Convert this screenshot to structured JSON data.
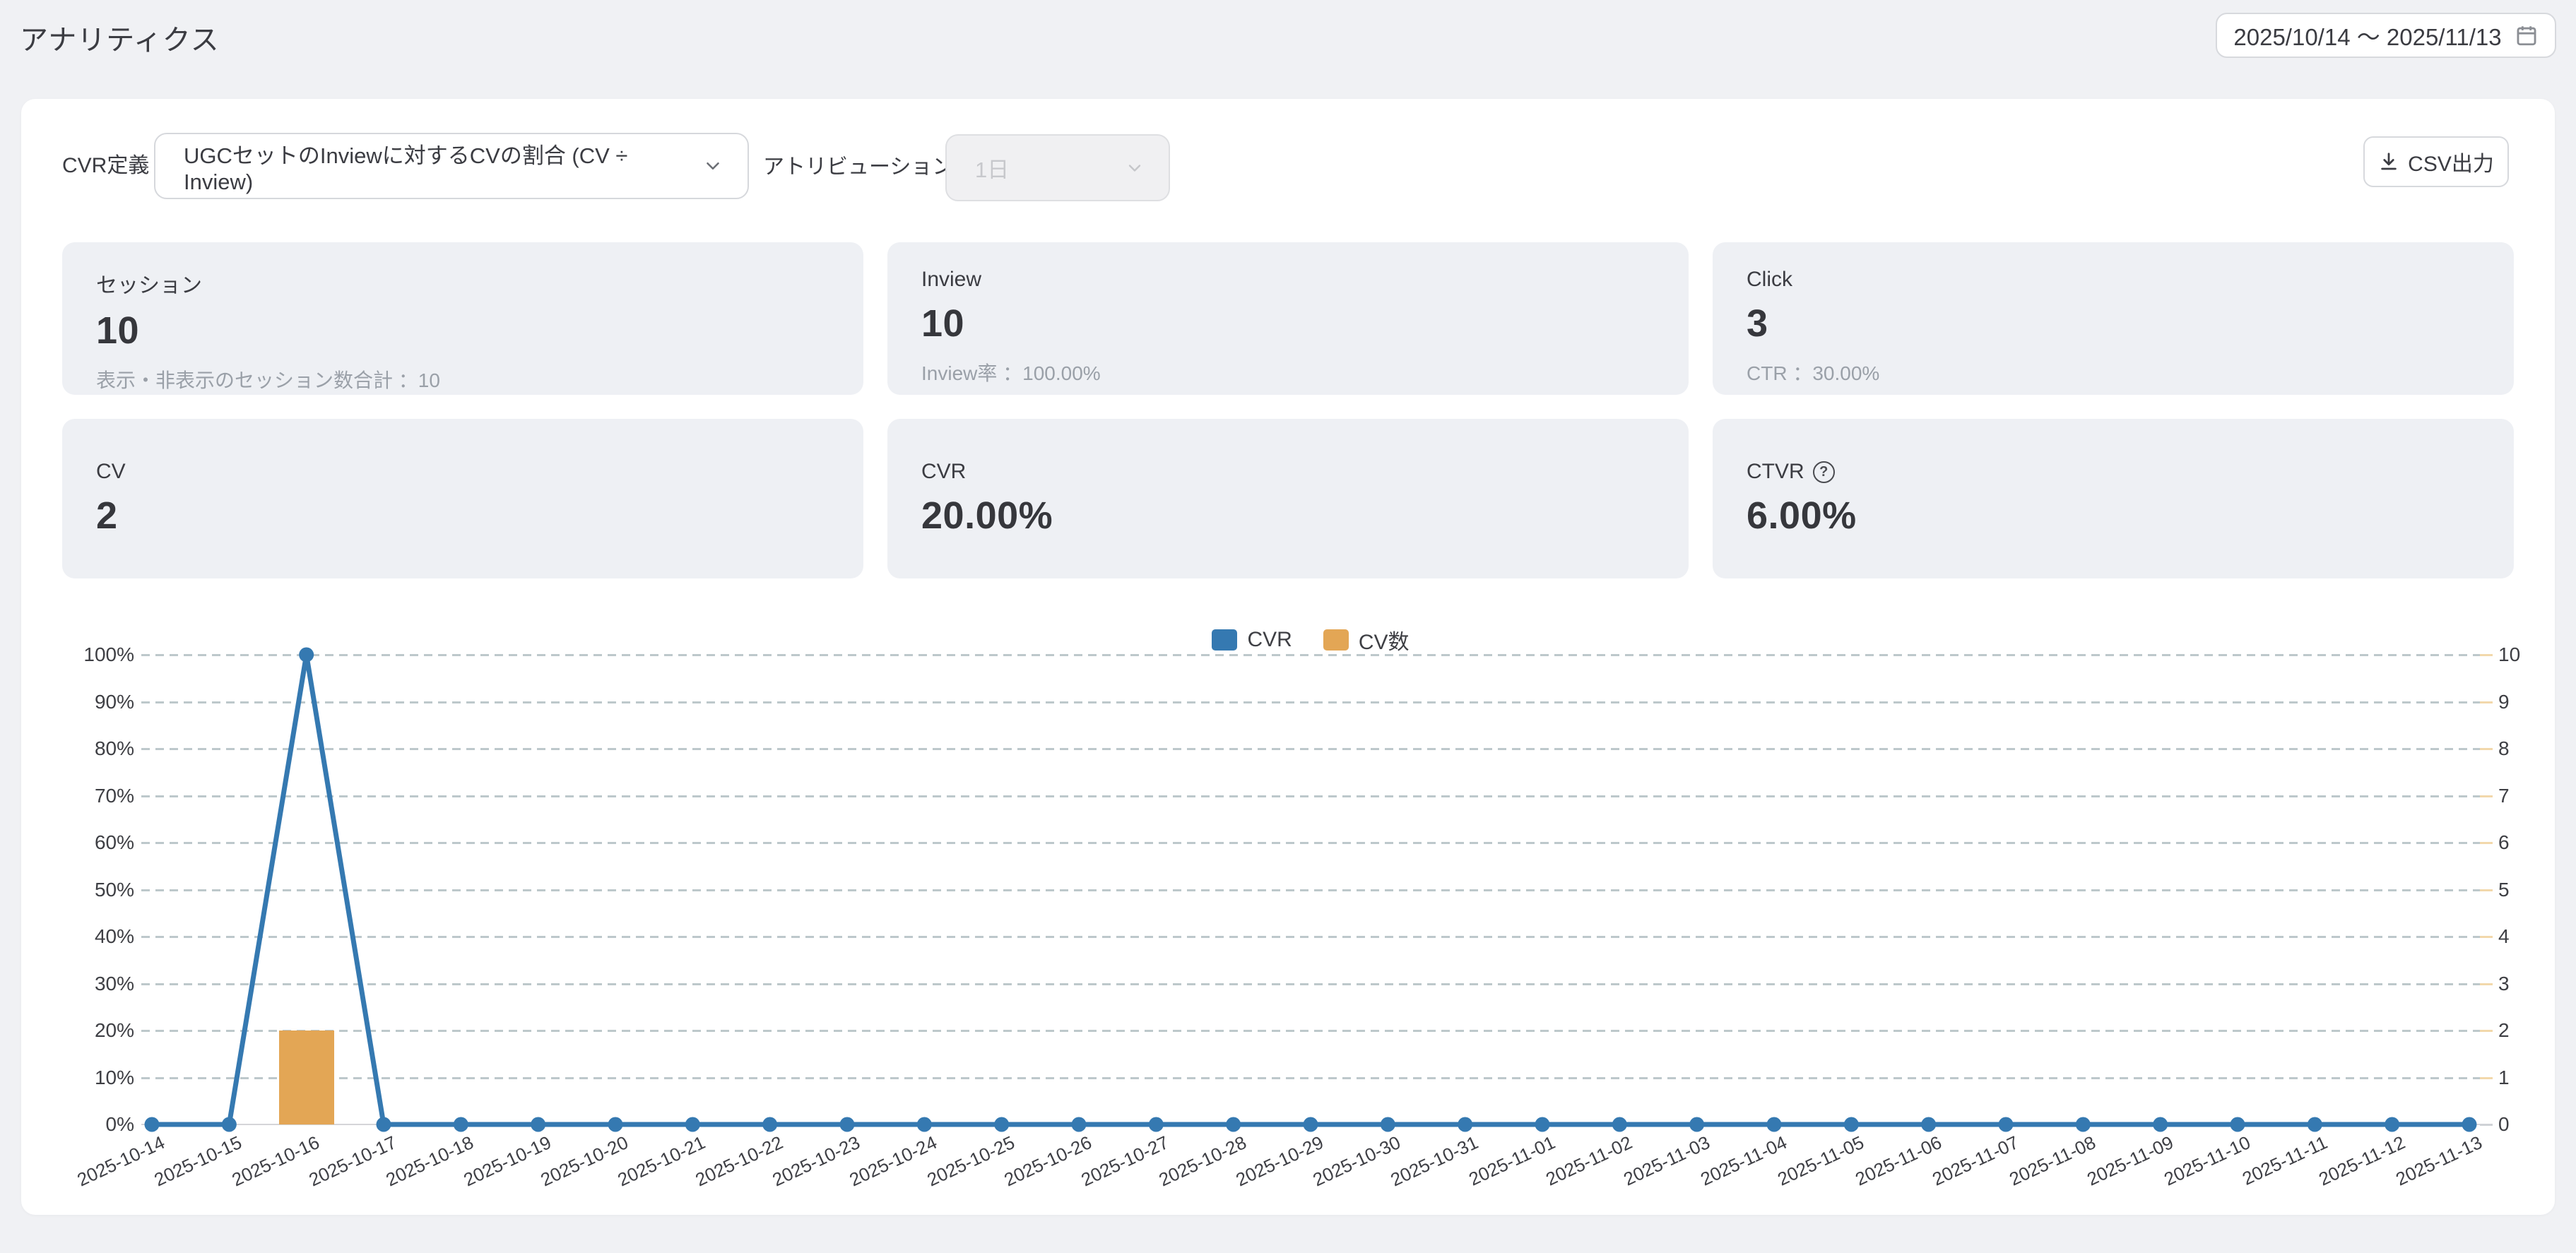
{
  "header": {
    "title": "アナリティクス",
    "date_range": "2025/10/14 ～ 2025/11/13"
  },
  "controls": {
    "cvr_definition_label": "CVR定義",
    "cvr_definition_value": "UGCセットのInviewに対するCVの割合 (CV ÷ Inview)",
    "attribution_label": "アトリビューション",
    "attribution_value": "1日",
    "csv_button_label": "CSV出力"
  },
  "stats": [
    {
      "label": "セッション",
      "value": "10",
      "sub": "表示・非表示のセッション数合計 ：10"
    },
    {
      "label": "Inview",
      "value": "10",
      "sub": "Inview率 ：100.00%"
    },
    {
      "label": "Click",
      "value": "3",
      "sub": "CTR ：30.00%"
    },
    {
      "label": "CV",
      "value": "2",
      "sub": ""
    },
    {
      "label": "CVR",
      "value": "20.00%",
      "sub": ""
    },
    {
      "label": "CTVR",
      "value": "6.00%",
      "sub": "",
      "help_icon": "?"
    }
  ],
  "colors": {
    "cvr_line": "#3579b1",
    "cv_bar": "#e3a655",
    "grid_dash": "#bdc8cb",
    "axis_zero": "#d5d5d8"
  },
  "chart_data": {
    "type": "line+bar",
    "title": "",
    "legend": [
      "CVR",
      "CV数"
    ],
    "legend_position": "top-center",
    "grid": "dashed-horizontal",
    "x": [
      "2025-10-14",
      "2025-10-15",
      "2025-10-16",
      "2025-10-17",
      "2025-10-18",
      "2025-10-19",
      "2025-10-20",
      "2025-10-21",
      "2025-10-22",
      "2025-10-23",
      "2025-10-24",
      "2025-10-25",
      "2025-10-26",
      "2025-10-27",
      "2025-10-28",
      "2025-10-29",
      "2025-10-30",
      "2025-10-31",
      "2025-11-01",
      "2025-11-02",
      "2025-11-03",
      "2025-11-04",
      "2025-11-05",
      "2025-11-06",
      "2025-11-07",
      "2025-11-08",
      "2025-11-09",
      "2025-11-10",
      "2025-11-11",
      "2025-11-12",
      "2025-11-13"
    ],
    "series": [
      {
        "name": "CVR",
        "type": "line",
        "axis": "left",
        "unit": "%",
        "color": "#3579b1",
        "values": [
          0,
          0,
          100,
          0,
          0,
          0,
          0,
          0,
          0,
          0,
          0,
          0,
          0,
          0,
          0,
          0,
          0,
          0,
          0,
          0,
          0,
          0,
          0,
          0,
          0,
          0,
          0,
          0,
          0,
          0,
          0
        ]
      },
      {
        "name": "CV数",
        "type": "bar",
        "axis": "right",
        "color": "#e3a655",
        "values": [
          0,
          0,
          2,
          0,
          0,
          0,
          0,
          0,
          0,
          0,
          0,
          0,
          0,
          0,
          0,
          0,
          0,
          0,
          0,
          0,
          0,
          0,
          0,
          0,
          0,
          0,
          0,
          0,
          0,
          0,
          0
        ]
      }
    ],
    "left_axis": {
      "min": 0,
      "max": 100,
      "ticks": [
        "0%",
        "10%",
        "20%",
        "30%",
        "40%",
        "50%",
        "60%",
        "70%",
        "80%",
        "90%",
        "100%"
      ]
    },
    "right_axis": {
      "min": 0,
      "max": 10,
      "ticks": [
        "0",
        "1",
        "2",
        "3",
        "4",
        "5",
        "6",
        "7",
        "8",
        "9",
        "10"
      ]
    }
  }
}
